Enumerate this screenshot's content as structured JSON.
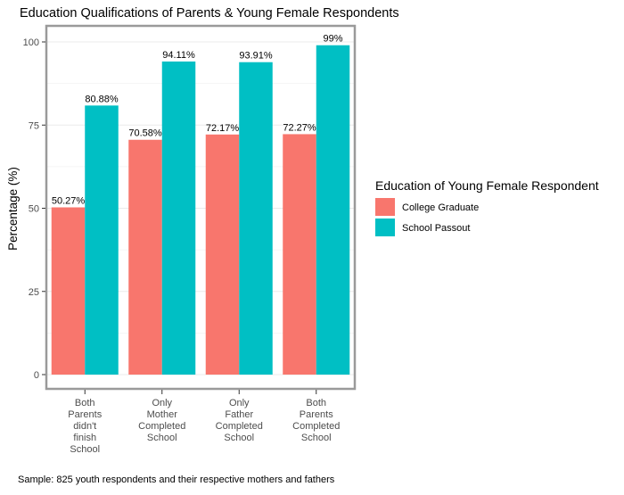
{
  "chart_data": {
    "type": "bar",
    "title": "Education Qualifications of Parents & Young Female Respondents",
    "xlabel": "",
    "ylabel": "Percentage (%)",
    "ylim": [
      0,
      100
    ],
    "yticks": [
      0,
      25,
      50,
      75,
      100
    ],
    "ytick_labels": [
      "0",
      "25",
      "50",
      "75",
      "100"
    ],
    "categories": [
      [
        "Both",
        "Parents",
        "didn't",
        "finish",
        "School"
      ],
      [
        "Only",
        "Mother",
        "Completed",
        "School"
      ],
      [
        "Only",
        "Father",
        "Completed",
        "School"
      ],
      [
        "Both",
        "Parents",
        "Completed",
        "School"
      ]
    ],
    "series": [
      {
        "name": "College Graduate",
        "color": "#F8766D",
        "values": [
          50.27,
          70.58,
          72.17,
          72.27
        ],
        "labels": [
          "50.27%",
          "70.58%",
          "72.17%",
          "72.27%"
        ]
      },
      {
        "name": "School Passout",
        "color": "#00BFC4",
        "values": [
          80.88,
          94.11,
          93.91,
          99
        ],
        "labels": [
          "80.88%",
          "94.11%",
          "93.91%",
          "99%"
        ]
      }
    ],
    "legend": {
      "title": "Education of Young Female Respondent",
      "position": "right"
    },
    "grid": true,
    "caption": "Sample: 825 youth respondents and their respective mothers and fathers"
  }
}
